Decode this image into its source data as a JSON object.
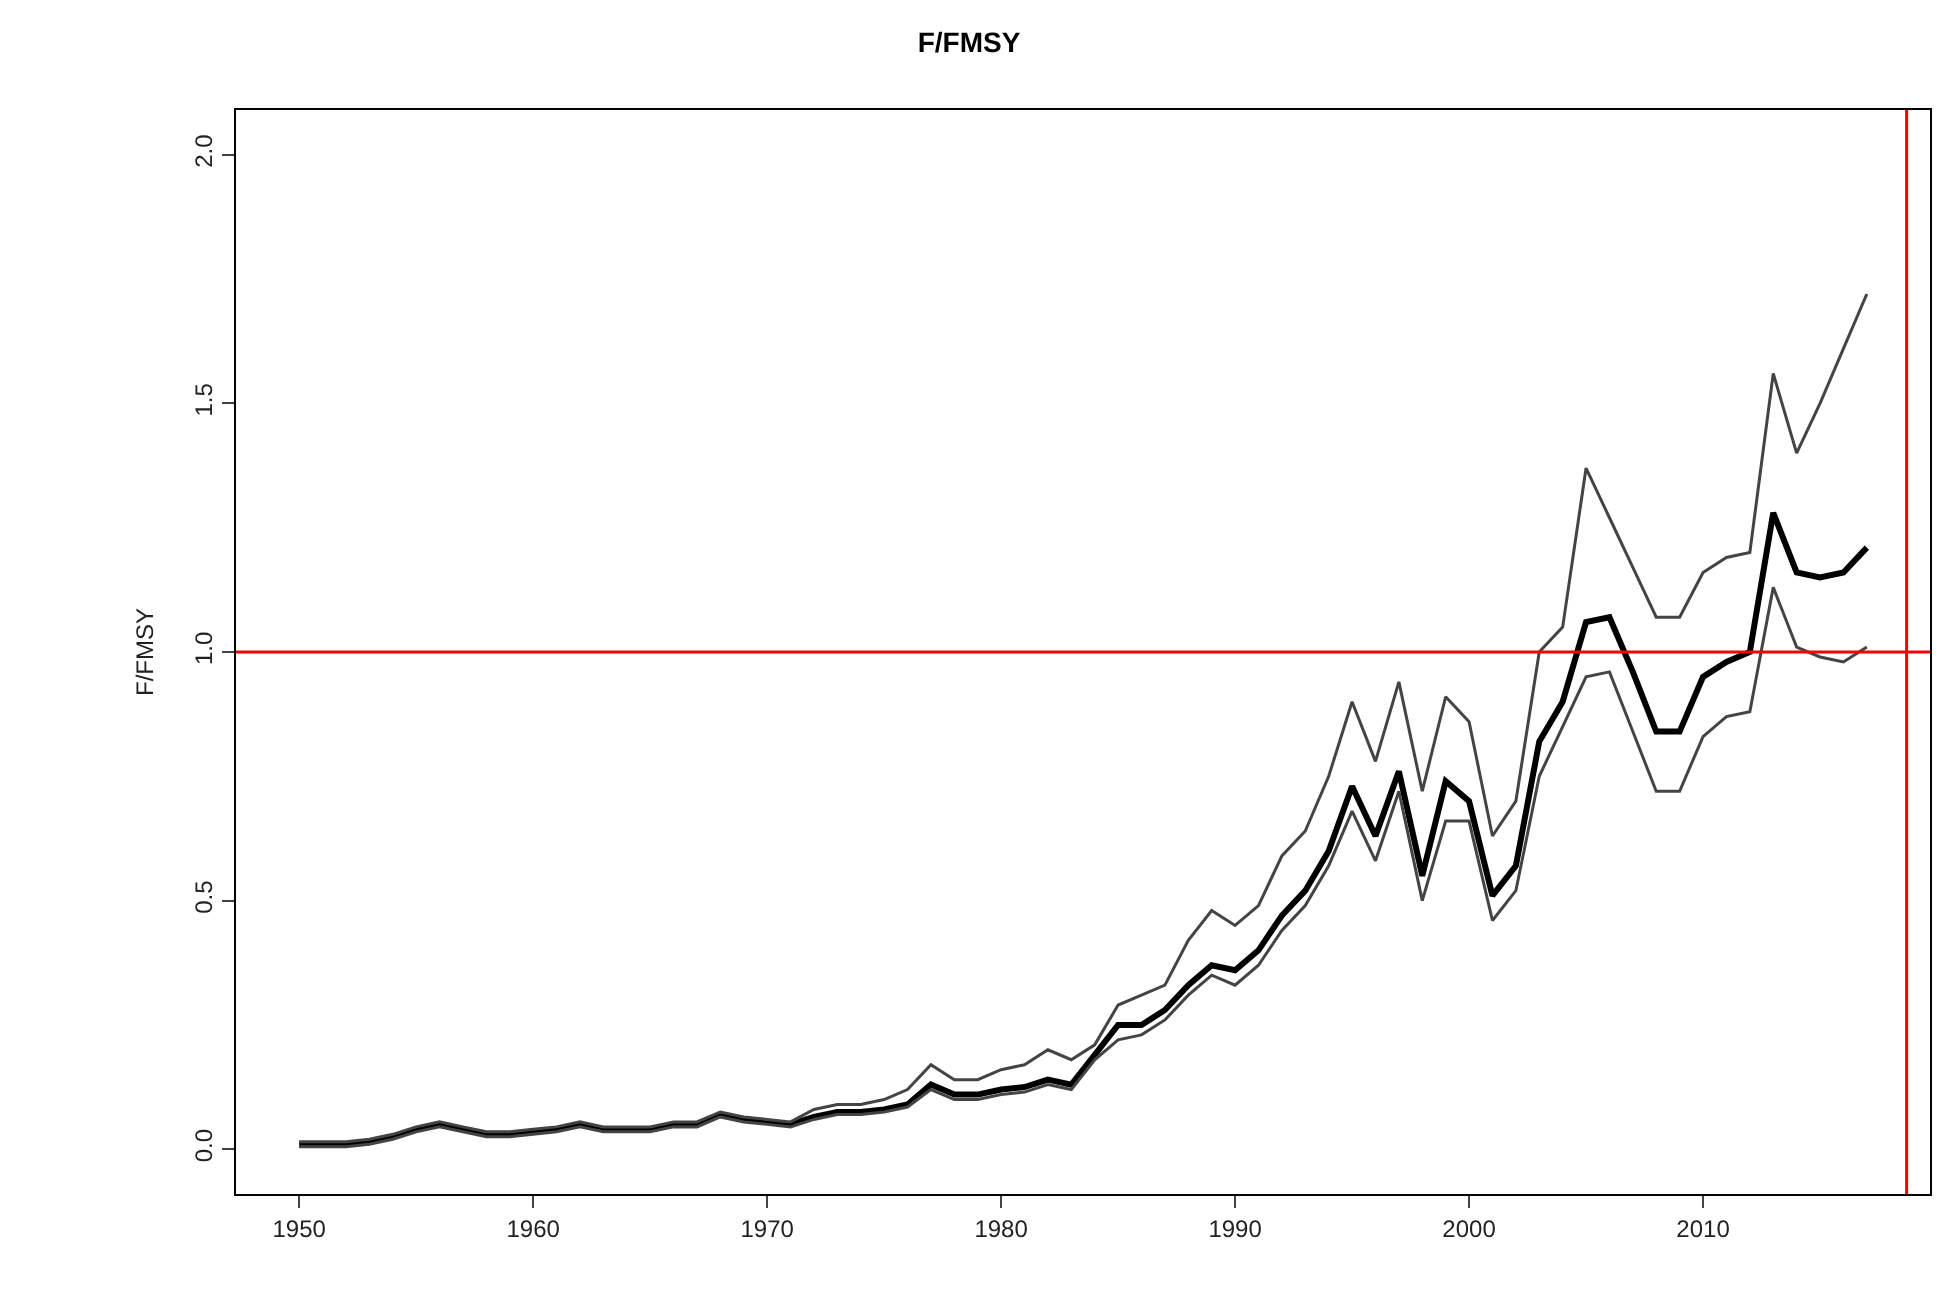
{
  "chart_data": {
    "type": "line",
    "title": "F/FMSY",
    "ylabel": "F/FMSY",
    "x": [
      1950,
      1951,
      1952,
      1953,
      1954,
      1955,
      1956,
      1957,
      1958,
      1959,
      1960,
      1961,
      1962,
      1963,
      1964,
      1965,
      1966,
      1967,
      1968,
      1969,
      1970,
      1971,
      1972,
      1973,
      1974,
      1975,
      1976,
      1977,
      1978,
      1979,
      1980,
      1981,
      1982,
      1983,
      1984,
      1985,
      1986,
      1987,
      1988,
      1989,
      1990,
      1991,
      1992,
      1993,
      1994,
      1995,
      1996,
      1997,
      1998,
      1999,
      2000,
      2001,
      2002,
      2003,
      2004,
      2005,
      2006,
      2007,
      2008,
      2009,
      2010,
      2011,
      2012,
      2013,
      2014,
      2015,
      2016,
      2017
    ],
    "series": [
      {
        "color": "#000000",
        "values": [
          0.01,
          0.01,
          0.01,
          0.015,
          0.025,
          0.04,
          0.05,
          0.04,
          0.03,
          0.03,
          0.035,
          0.04,
          0.05,
          0.04,
          0.04,
          0.04,
          0.05,
          0.05,
          0.07,
          0.06,
          0.055,
          0.05,
          0.065,
          0.075,
          0.075,
          0.08,
          0.09,
          0.13,
          0.11,
          0.11,
          0.12,
          0.125,
          0.14,
          0.13,
          0.19,
          0.25,
          0.25,
          0.28,
          0.33,
          0.37,
          0.36,
          0.4,
          0.47,
          0.52,
          0.6,
          0.73,
          0.63,
          0.76,
          0.55,
          0.74,
          0.7,
          0.51,
          0.57,
          0.82,
          0.9,
          1.06,
          1.07,
          0.96,
          0.84,
          0.84,
          0.95,
          0.98,
          1.0,
          1.28,
          1.16,
          1.15,
          1.16,
          1.21
        ]
      },
      {
        "color": "#444444",
        "values": [
          0.015,
          0.015,
          0.015,
          0.02,
          0.03,
          0.045,
          0.055,
          0.045,
          0.035,
          0.035,
          0.04,
          0.045,
          0.055,
          0.045,
          0.045,
          0.045,
          0.055,
          0.055,
          0.075,
          0.065,
          0.06,
          0.055,
          0.08,
          0.09,
          0.09,
          0.1,
          0.12,
          0.17,
          0.14,
          0.14,
          0.16,
          0.17,
          0.2,
          0.18,
          0.21,
          0.29,
          0.31,
          0.33,
          0.42,
          0.48,
          0.45,
          0.49,
          0.59,
          0.64,
          0.75,
          0.9,
          0.78,
          0.94,
          0.72,
          0.91,
          0.86,
          0.63,
          0.7,
          1.0,
          1.05,
          1.37,
          1.27,
          1.17,
          1.07,
          1.07,
          1.16,
          1.19,
          1.2,
          1.56,
          1.4,
          1.5,
          1.61,
          1.72
        ]
      },
      {
        "color": "#444444",
        "values": [
          0.005,
          0.005,
          0.005,
          0.01,
          0.02,
          0.035,
          0.045,
          0.035,
          0.025,
          0.025,
          0.03,
          0.035,
          0.045,
          0.035,
          0.035,
          0.035,
          0.045,
          0.045,
          0.065,
          0.055,
          0.05,
          0.045,
          0.06,
          0.07,
          0.07,
          0.075,
          0.085,
          0.12,
          0.1,
          0.1,
          0.11,
          0.115,
          0.13,
          0.12,
          0.18,
          0.22,
          0.23,
          0.26,
          0.31,
          0.35,
          0.33,
          0.37,
          0.44,
          0.49,
          0.57,
          0.68,
          0.58,
          0.72,
          0.5,
          0.66,
          0.66,
          0.46,
          0.52,
          0.75,
          0.85,
          0.95,
          0.96,
          0.84,
          0.72,
          0.72,
          0.83,
          0.87,
          0.88,
          1.13,
          1.01,
          0.99,
          0.98,
          1.01
        ]
      }
    ],
    "xlim": [
      1947.3,
      2019.7
    ],
    "ylim": [
      -0.09,
      2.09
    ],
    "xticks": [
      1950,
      1960,
      1970,
      1980,
      1990,
      2000,
      2010
    ],
    "yticks": [
      {
        "value": 0,
        "label": "0.0"
      },
      {
        "value": 0.5,
        "label": "0.5"
      },
      {
        "value": 1,
        "label": "1.0"
      },
      {
        "value": 1.5,
        "label": "1.5"
      },
      {
        "value": 2,
        "label": "2.0"
      }
    ],
    "ref_lines": [
      {
        "axis": "y",
        "value": 1.0,
        "color": "#ff0000"
      },
      {
        "axis": "x",
        "value": 2018.7,
        "color": "#ff0000"
      }
    ],
    "marker": "none",
    "line_style": "solid"
  }
}
